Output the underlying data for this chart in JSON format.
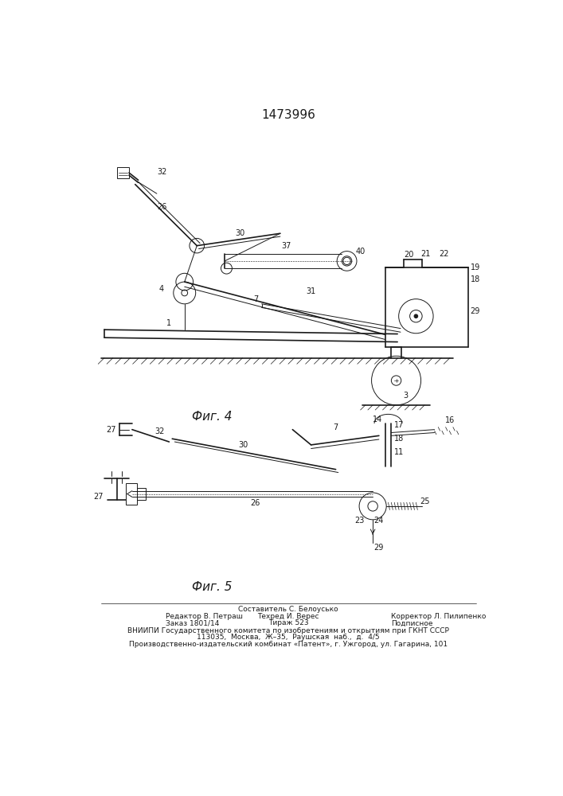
{
  "patent_number": "1473996",
  "fig4_caption": "Фиг. 4",
  "fig5_caption": "Фиг. 5",
  "footer_line1": "Составитель С. Белоусько",
  "footer_line2_left": "Редактор В. Петраш",
  "footer_line2_mid": "Техред И. Верес",
  "footer_line2_right": "Корректор Л. Пилипенко",
  "footer_line3_left": "Заказ 1801/14",
  "footer_line3_mid": "Тираж 523",
  "footer_line3_right": "Подписное",
  "footer_vnipi": "ВНИИПИ Государственного комитета по изобретениям и открытиям при ГКНТ СССР",
  "footer_address1": "113035,  Москва,  Ж–35,  Раушская  наб.,  д.  4/5",
  "footer_address2": "Производственно-издательский комбинат «Патент», г. Ужгород, ул. Гагарина, 101",
  "bg_color": "#ffffff",
  "line_color": "#1a1a1a"
}
